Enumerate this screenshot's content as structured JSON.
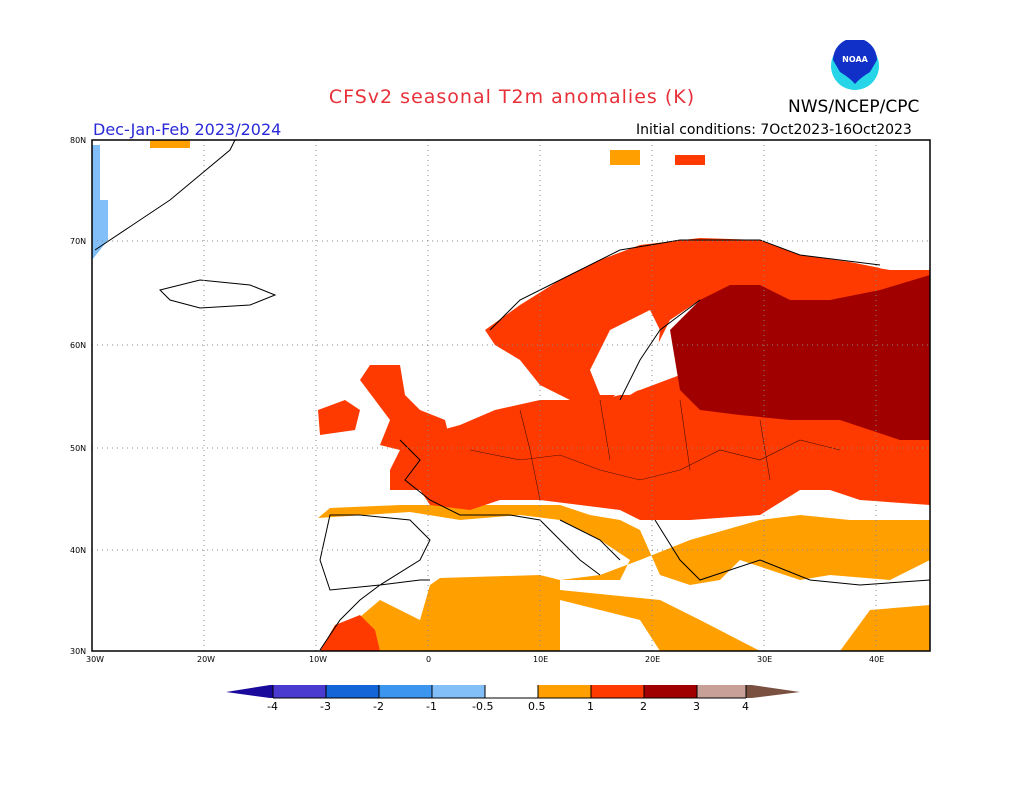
{
  "title": "CFSv2 seasonal T2m anomalies (K)",
  "agency": "NWS/NCEP/CPC",
  "logo_text": "NOAA",
  "season": "Dec-Jan-Feb 2023/2024",
  "initial_conditions": "Initial conditions: 7Oct2023-16Oct2023",
  "map": {
    "region": "Europe",
    "lon_range": [
      -30,
      45
    ],
    "lat_range": [
      30,
      80
    ],
    "lon_ticks": [
      "30W",
      "20W",
      "10W",
      "0",
      "10E",
      "20E",
      "30E",
      "40E"
    ],
    "lat_ticks": [
      "80N",
      "70N",
      "60N",
      "50N",
      "40N",
      "30N"
    ]
  },
  "colorbar": {
    "labels": [
      "-4",
      "-3",
      "-2",
      "-1",
      "-0.5",
      "0.5",
      "1",
      "2",
      "3",
      "4"
    ],
    "colors": {
      "lt_-4": "#1a0a9c",
      "-4_-3": "#4a3ad0",
      "-3_-2": "#1466d8",
      "-2_-1": "#3c96f0",
      "-1_-0.5": "#82bef8",
      "-0.5_0.5": "#ffffff",
      "0.5_1": "#ffa000",
      "1_2": "#ff3a00",
      "2_3": "#a00000",
      "3_4": "#c8a098",
      "gt_4": "#7a5040"
    }
  }
}
